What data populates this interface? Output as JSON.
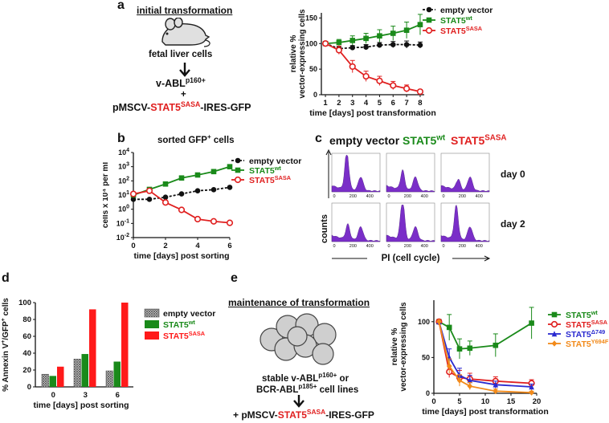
{
  "panel_a": {
    "label": "a",
    "title": "initial transformation",
    "cells": "fetal liver cells",
    "oncogene_base": "v-ABL",
    "oncogene_sup": "p160+",
    "plus": "+",
    "vector_pre": "pMSCV-",
    "vector_gene": "STAT5",
    "vector_gene_sup": "SASA",
    "vector_post": "-IRES-GFP"
  },
  "panel_b": {
    "label": "b",
    "title_base": "sorted GFP",
    "title_sup": "+",
    "title_post": " cells"
  },
  "panel_c": {
    "label": "c",
    "col_empty": "empty vector",
    "col_wt_base": "STAT5",
    "col_wt_sup": "wt",
    "col_sasa_base": "STAT5",
    "col_sasa_sup": "SASA",
    "row0": "day 0",
    "row2": "day 2",
    "ylabel": "counts",
    "xlabel": "PI (cell cycle)",
    "tick_0": "0",
    "tick_200": "200",
    "tick_400": "400"
  },
  "panel_d": {
    "label": "d"
  },
  "panel_e": {
    "label": "e",
    "title": "maintenance of transformation",
    "line1_base": "stable v-ABL",
    "line1_sup": "p160+",
    "line1_post": " or",
    "line2_base": "BCR-ABL",
    "line2_sup": "p185+",
    "line2_post": " cell lines",
    "vector_pre": "+ pMSCV-",
    "vector_gene": "STAT5",
    "vector_gene_sup": "SASA",
    "vector_post": "-IRES-GFP"
  },
  "colors": {
    "black": "#111111",
    "green": "#1a8a1a",
    "red": "#e02020",
    "blue": "#2a2ad0",
    "orange": "#f28a1a",
    "purple": "#7a2ec8",
    "bar_hatch": "#8c8c8c"
  },
  "chart_data": [
    {
      "id": "a",
      "type": "line",
      "xlabel": "time [days] post transformation",
      "ylabel": "relative %\nvector-expressing cells",
      "x": [
        1,
        2,
        3,
        4,
        5,
        6,
        7,
        8
      ],
      "xticks": [
        "1",
        "2",
        "3",
        "4",
        "5",
        "6",
        "7",
        "8"
      ],
      "yticks": [
        "0",
        "50",
        "100",
        "150"
      ],
      "ylim": [
        0,
        160
      ],
      "series": [
        {
          "name": "empty vector",
          "color": "#111111",
          "dashed": true,
          "marker": "circle-filled",
          "values": [
            100,
            90,
            92,
            93,
            97,
            98,
            98,
            97
          ],
          "err": [
            0,
            3,
            4,
            5,
            5,
            6,
            7,
            6
          ]
        },
        {
          "name_base": "STAT5",
          "name_sup": "wt",
          "color": "#1a8a1a",
          "marker": "square",
          "values": [
            100,
            102,
            106,
            110,
            115,
            120,
            126,
            137
          ],
          "err": [
            0,
            6,
            9,
            10,
            12,
            14,
            16,
            20
          ]
        },
        {
          "name_base": "STAT5",
          "name_sup": "SASA",
          "color": "#e02020",
          "marker": "circle-open",
          "values": [
            100,
            87,
            55,
            36,
            27,
            18,
            12,
            6
          ],
          "err": [
            0,
            8,
            12,
            10,
            9,
            8,
            7,
            4
          ]
        }
      ]
    },
    {
      "id": "b",
      "type": "line",
      "xlabel": "time [days] post sorting",
      "ylabel": "cells x 10⁴ per ml",
      "x": [
        0,
        1,
        2,
        3,
        4,
        5,
        6
      ],
      "xticks": [
        "0",
        "2",
        "4",
        "6"
      ],
      "xtick_vals": [
        0,
        2,
        4,
        6
      ],
      "ytick_exp": [
        "-2",
        "-1",
        "0",
        "1",
        "2",
        "3",
        "4"
      ],
      "ylim_log10": [
        -2,
        4
      ],
      "series": [
        {
          "name": "empty vector",
          "color": "#111111",
          "dashed": true,
          "marker": "circle-filled",
          "values": [
            5,
            5,
            7,
            12,
            20,
            24,
            35
          ]
        },
        {
          "name_base": "STAT5",
          "name_sup": "wt",
          "color": "#1a8a1a",
          "marker": "square",
          "values": [
            10,
            25,
            60,
            160,
            260,
            450,
            1000
          ]
        },
        {
          "name_base": "STAT5",
          "name_sup": "SASA",
          "color": "#e02020",
          "marker": "circle-open",
          "values": [
            12,
            20,
            3,
            0.9,
            0.2,
            0.14,
            0.11
          ]
        }
      ]
    },
    {
      "id": "d",
      "type": "bar",
      "xlabel": "time [days] post sorting",
      "ylabel_base": "% Annexin V",
      "ylabel_sup1": "+",
      "ylabel_mid": "/GFP",
      "ylabel_sup2": "+",
      "ylabel_post": " cells",
      "categories": [
        "0",
        "3",
        "6"
      ],
      "yticks": [
        "0",
        "20",
        "40",
        "60",
        "80",
        "100"
      ],
      "ylim": [
        0,
        100
      ],
      "series": [
        {
          "name": "empty vector",
          "color": "#8c8c8c",
          "hatch": true,
          "values": [
            15,
            33,
            19
          ]
        },
        {
          "name_base": "STAT5",
          "name_sup": "wt",
          "color": "#1a8a1a",
          "values": [
            13,
            39,
            30
          ]
        },
        {
          "name_base": "STAT5",
          "name_sup": "SASA",
          "color": "#ff1a1a",
          "values": [
            24,
            92,
            100
          ]
        }
      ]
    },
    {
      "id": "e",
      "type": "line",
      "xlabel": "time [days] post transformation",
      "ylabel": "relative %\nvector-expressing cells",
      "x": [
        1,
        3,
        5,
        7,
        12,
        19
      ],
      "xticks": [
        "0",
        "5",
        "10",
        "15",
        "20"
      ],
      "xtick_vals": [
        0,
        5,
        10,
        15,
        20
      ],
      "yticks": [
        "0",
        "50",
        "100"
      ],
      "ylim": [
        0,
        130
      ],
      "series": [
        {
          "name_base": "STAT5",
          "name_sup": "wt",
          "color": "#1a8a1a",
          "marker": "square",
          "values": [
            100,
            92,
            62,
            63,
            67,
            98
          ],
          "err": [
            0,
            18,
            14,
            10,
            16,
            22
          ]
        },
        {
          "name_base": "STAT5",
          "name_sup": "SASA",
          "color": "#e02020",
          "marker": "circle-open",
          "values": [
            100,
            30,
            22,
            20,
            17,
            14
          ],
          "err": [
            0,
            8,
            10,
            8,
            6,
            5
          ]
        },
        {
          "name_base": "STAT5",
          "name_sup": "Δ749",
          "color": "#2a2ad0",
          "marker": "triangle",
          "values": [
            100,
            50,
            25,
            18,
            12,
            9
          ],
          "err": [
            0,
            12,
            10,
            7,
            5,
            4
          ]
        },
        {
          "name_base": "STAT5",
          "name_sup": "Y694F",
          "color": "#f28a1a",
          "marker": "diamond",
          "values": [
            100,
            38,
            18,
            10,
            3,
            1
          ],
          "err": [
            0,
            10,
            8,
            5,
            3,
            2
          ]
        }
      ]
    }
  ]
}
